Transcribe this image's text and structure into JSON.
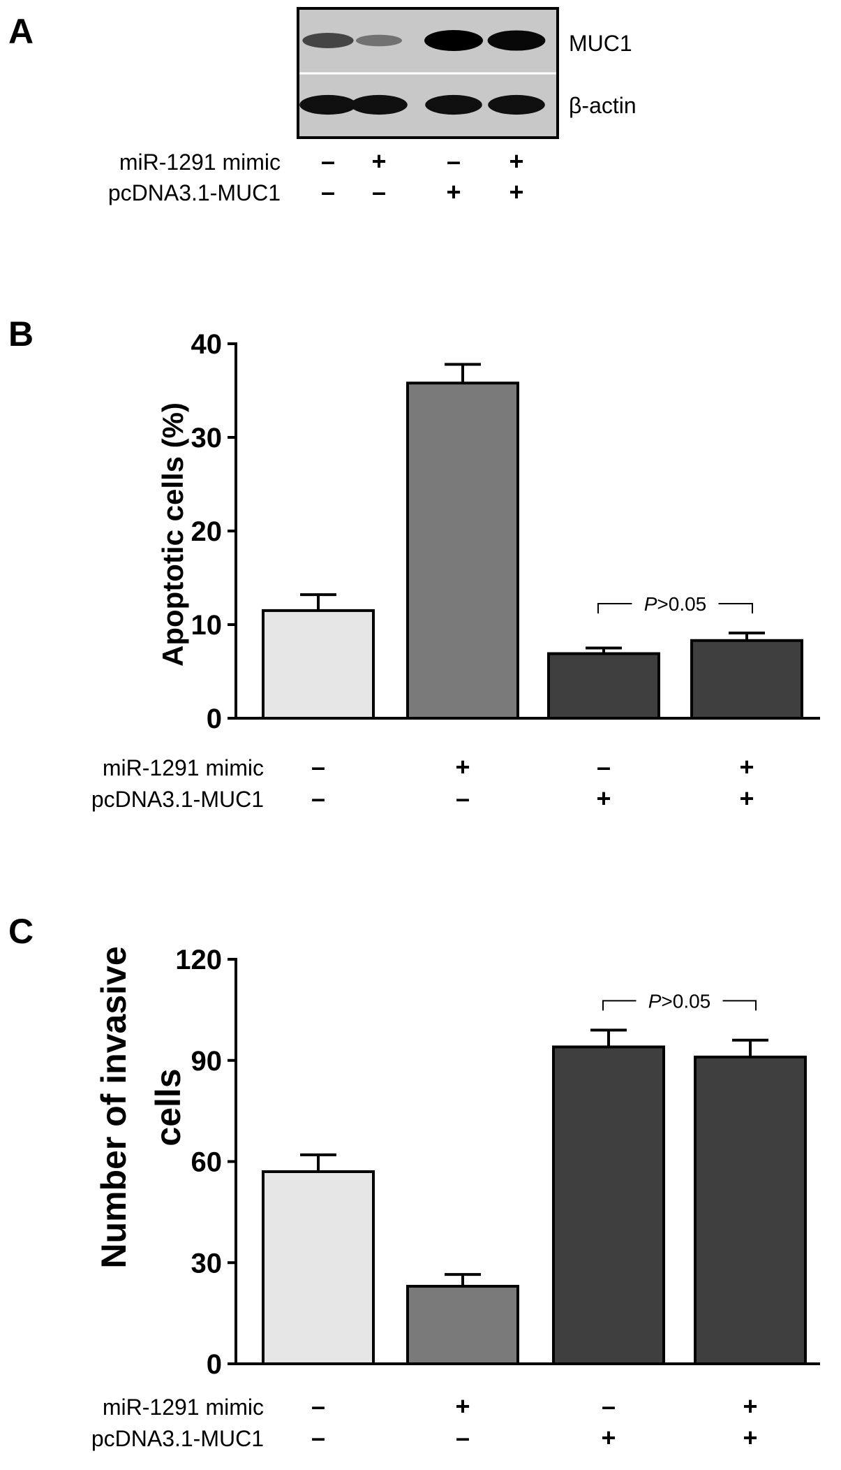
{
  "panels": [
    {
      "letter": "A",
      "type": "western_blot",
      "bands": [
        {
          "name": "MUC1",
          "intensity": [
            0.55,
            0.25,
            1.0,
            0.95
          ]
        },
        {
          "name": "β-actin",
          "intensity": [
            0.9,
            0.9,
            0.9,
            0.9
          ]
        }
      ],
      "conditions": [
        {
          "name": "miR-1291 mimic",
          "values": [
            "–",
            "+",
            "–",
            "+"
          ]
        },
        {
          "name": "pcDNA3.1-MUC1",
          "values": [
            "–",
            "–",
            "+",
            "+"
          ]
        }
      ]
    },
    {
      "letter": "B",
      "conditions": [
        {
          "name": "miR-1291 mimic",
          "values": [
            "–",
            "+",
            "–",
            "+"
          ]
        },
        {
          "name": "pcDNA3.1-MUC1",
          "values": [
            "–",
            "–",
            "+",
            "+"
          ]
        }
      ]
    },
    {
      "letter": "C",
      "conditions": [
        {
          "name": "miR-1291 mimic",
          "values": [
            "–",
            "+",
            "–",
            "+"
          ]
        },
        {
          "name": "pcDNA3.1-MUC1",
          "values": [
            "–",
            "–",
            "+",
            "+"
          ]
        }
      ]
    }
  ],
  "chart_data": [
    {
      "type": "bar",
      "panel": "B",
      "title": "",
      "ylabel": "Apoptotic cells (%)",
      "xlabel": "",
      "ylim": [
        0,
        40
      ],
      "yticks": [
        0,
        10,
        20,
        30,
        40
      ],
      "ytick_labels": [
        "0",
        "10",
        "20",
        "30",
        "40"
      ],
      "values": [
        11.5,
        35.8,
        6.9,
        8.3
      ],
      "errors": [
        1.7,
        2.0,
        0.6,
        0.8
      ],
      "bar_colors": [
        "#e6e6e6",
        "#7a7a7a",
        "#3f3f3f",
        "#3f3f3f"
      ],
      "annotation": {
        "prefix": "P",
        "suffix": ">0.05",
        "between": [
          2,
          3
        ]
      },
      "grid": false
    },
    {
      "type": "bar",
      "panel": "C",
      "title": "",
      "ylabel_lines": [
        "Number of invasive",
        "cells"
      ],
      "xlabel": "",
      "ylim": [
        0,
        120
      ],
      "yticks": [
        0,
        30,
        60,
        90,
        120
      ],
      "ytick_labels": [
        "0",
        "30",
        "60",
        "90",
        "120"
      ],
      "values": [
        57,
        23,
        94,
        91
      ],
      "errors": [
        5,
        3.5,
        5,
        5
      ],
      "bar_colors": [
        "#e6e6e6",
        "#7a7a7a",
        "#3f3f3f",
        "#3f3f3f"
      ],
      "annotation": {
        "prefix": "P",
        "suffix": ">0.05",
        "between": [
          2,
          3
        ]
      },
      "grid": false
    }
  ]
}
